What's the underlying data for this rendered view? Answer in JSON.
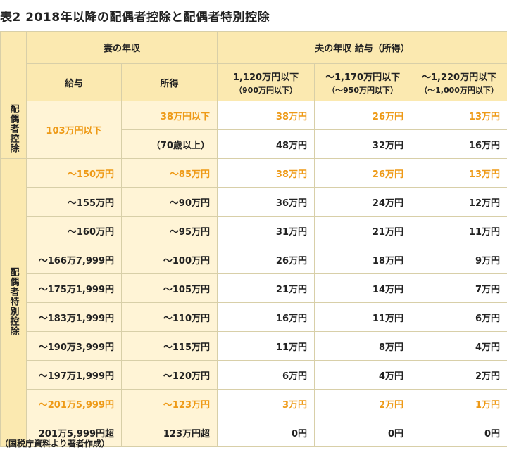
{
  "title": "表2 2018年以降の配偶者控除と配偶者特別控除",
  "header": {
    "wife_income": "妻の年収",
    "husband_income": "夫の年収 給与（所得）",
    "salary": "給与",
    "income": "所得",
    "col1_main": "1,120万円以下",
    "col1_sub": "（900万円以下）",
    "col2_main": "〜1,170万円以下",
    "col2_sub": "（〜950万円以下）",
    "col3_main": "〜1,220万円以下",
    "col3_sub": "（〜1,000万円以下）"
  },
  "category": {
    "spouse_deduction": "配偶者控除",
    "special_deduction": "配偶者特別控除"
  },
  "spouse_rows": {
    "salary": "103万円以下",
    "r1": {
      "income": "38万円以下",
      "c1": "38万円",
      "c2": "26万円",
      "c3": "13万円"
    },
    "r2": {
      "income": "（70歳以上）",
      "c1": "48万円",
      "c2": "32万円",
      "c3": "16万円"
    }
  },
  "special_rows": [
    {
      "salary": "〜150万円",
      "income": "〜85万円",
      "c1": "38万円",
      "c2": "26万円",
      "c3": "13万円"
    },
    {
      "salary": "〜155万円",
      "income": "〜90万円",
      "c1": "36万円",
      "c2": "24万円",
      "c3": "12万円"
    },
    {
      "salary": "〜160万円",
      "income": "〜95万円",
      "c1": "31万円",
      "c2": "21万円",
      "c3": "11万円"
    },
    {
      "salary": "〜166万7,999円",
      "income": "〜100万円",
      "c1": "26万円",
      "c2": "18万円",
      "c3": "9万円"
    },
    {
      "salary": "〜175万1,999円",
      "income": "〜105万円",
      "c1": "21万円",
      "c2": "14万円",
      "c3": "7万円"
    },
    {
      "salary": "〜183万1,999円",
      "income": "〜110万円",
      "c1": "16万円",
      "c2": "11万円",
      "c3": "6万円"
    },
    {
      "salary": "〜190万3,999円",
      "income": "〜115万円",
      "c1": "11万円",
      "c2": "8万円",
      "c3": "4万円"
    },
    {
      "salary": "〜197万1,999円",
      "income": "〜120万円",
      "c1": "6万円",
      "c2": "4万円",
      "c3": "2万円"
    },
    {
      "salary": "〜201万5,999円",
      "income": "〜123万円",
      "c1": "3万円",
      "c2": "2万円",
      "c3": "1万円"
    },
    {
      "salary": "201万5,999円超",
      "income": "123万円超",
      "c1": "0円",
      "c2": "0円",
      "c3": "0円"
    }
  ],
  "note": "（国税庁資料より著者作成）",
  "colors": {
    "header_bg": "#fbe9b0",
    "wife_bg": "#fff4d6",
    "highlight": "#ee9a17",
    "border": "#d8cfa8"
  }
}
